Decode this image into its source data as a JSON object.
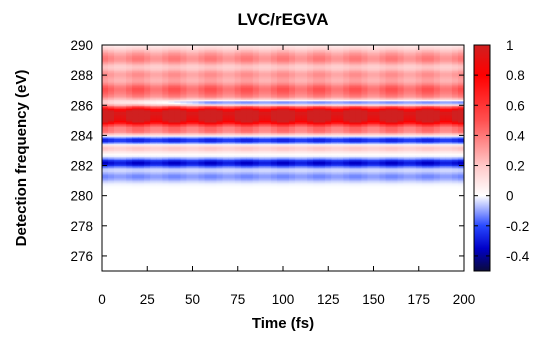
{
  "chart_data": {
    "type": "heatmap",
    "title": "LVC/rEGVA",
    "xlabel": "Time (fs)",
    "ylabel": "Detection frequency (eV)",
    "xlim": [
      0,
      200
    ],
    "ylim": [
      275,
      290
    ],
    "x_ticks": [
      0,
      25,
      50,
      75,
      100,
      125,
      150,
      175,
      200
    ],
    "y_ticks": [
      276,
      278,
      280,
      282,
      284,
      286,
      288,
      290
    ],
    "colorbar": {
      "range": [
        -0.5,
        1
      ],
      "ticks": [
        -0.4,
        -0.2,
        0,
        0.2,
        0.4,
        0.6,
        0.8,
        1
      ],
      "tick_labels": [
        "-0.4",
        "-0.2",
        "0",
        "0.2",
        "0.4",
        "0.6",
        "0.8",
        "1"
      ],
      "colors": [
        {
          "value": -0.5,
          "color": "#0a0a3c"
        },
        {
          "value": -0.35,
          "color": "#0000c8"
        },
        {
          "value": -0.2,
          "color": "#2848ff"
        },
        {
          "value": 0,
          "color": "#ffffff"
        },
        {
          "value": 0.2,
          "color": "#ffc8c8"
        },
        {
          "value": 0.5,
          "color": "#ff5050"
        },
        {
          "value": 0.8,
          "color": "#ff0000"
        },
        {
          "value": 1.0,
          "color": "#d02020"
        }
      ]
    },
    "bands": [
      {
        "center": 289.5,
        "width": 0.45,
        "amplitude": 0.22
      },
      {
        "center": 289.0,
        "width": 0.4,
        "amplitude": 0.28
      },
      {
        "center": 288.1,
        "width": 0.45,
        "amplitude": 0.3
      },
      {
        "center": 287.1,
        "width": 0.55,
        "amplitude": 0.45
      },
      {
        "center": 286.55,
        "width": 0.3,
        "amplitude": 0.15
      },
      {
        "center": 285.6,
        "width": 0.4,
        "amplitude": 0.95
      },
      {
        "center": 285.0,
        "width": 0.4,
        "amplitude": 0.85
      },
      {
        "center": 284.3,
        "width": 0.3,
        "amplitude": 0.35
      },
      {
        "center": 286.2,
        "width": 0.18,
        "amplitude": -0.3,
        "grows_with_time": true
      },
      {
        "center": 283.7,
        "width": 0.28,
        "amplitude": -0.28
      },
      {
        "center": 283.2,
        "width": 0.3,
        "amplitude": 0.2
      },
      {
        "center": 282.2,
        "width": 0.28,
        "amplitude": -0.33
      },
      {
        "center": 281.3,
        "width": 0.35,
        "amplitude": -0.12
      }
    ],
    "grid": false,
    "legend": "colorbar-right"
  }
}
